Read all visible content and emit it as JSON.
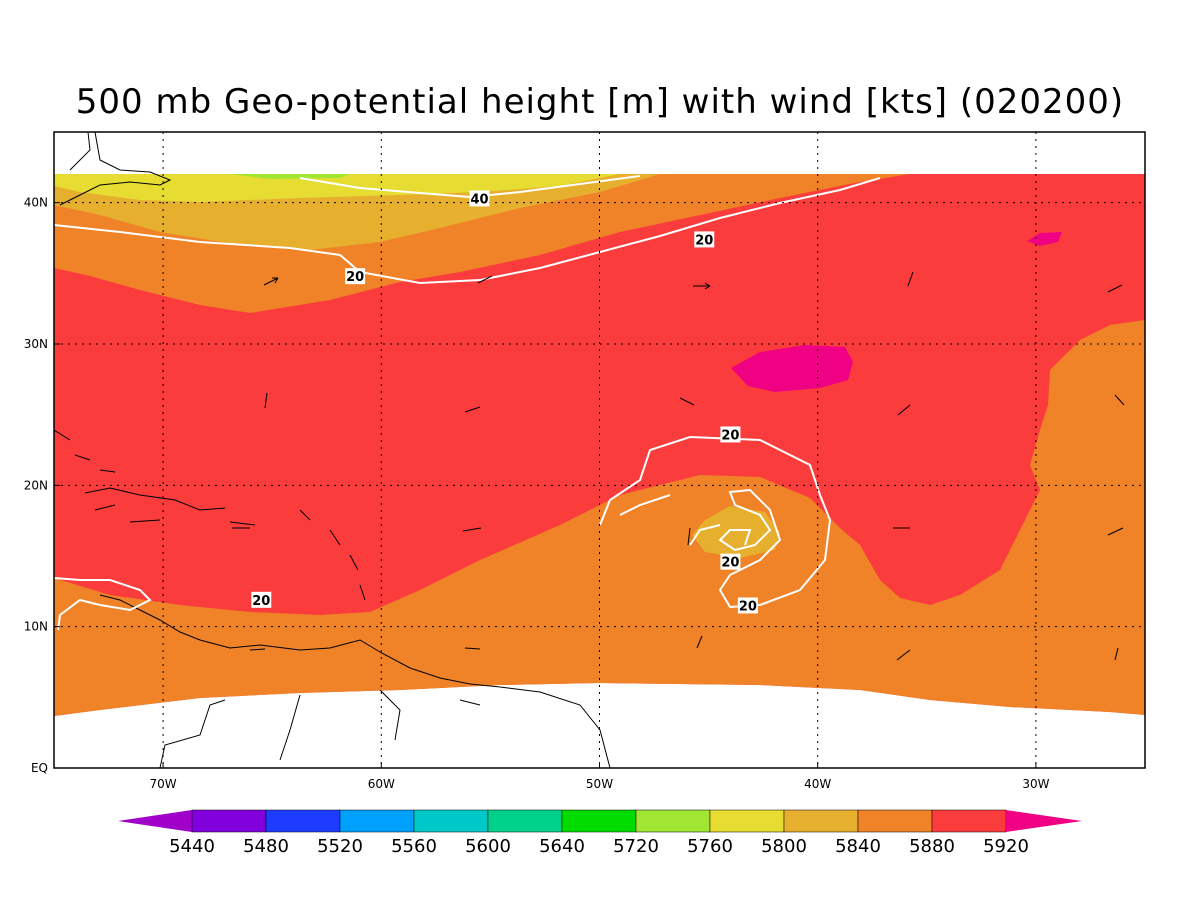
{
  "title": "500 mb Geo-potential height [m] with wind [kts] (020200)",
  "map": {
    "lon_range": [
      -75,
      -25
    ],
    "lat_range": [
      0,
      45
    ],
    "x_ticks": [
      {
        "lon": -70,
        "label": "70W"
      },
      {
        "lon": -60,
        "label": "60W"
      },
      {
        "lon": -50,
        "label": "50W"
      },
      {
        "lon": -40,
        "label": "40W"
      },
      {
        "lon": -30,
        "label": "30W"
      }
    ],
    "y_ticks": [
      {
        "lat": 0,
        "label": "EQ"
      },
      {
        "lat": 10,
        "label": "10N"
      },
      {
        "lat": 20,
        "label": "20N"
      },
      {
        "lat": 30,
        "label": "30N"
      },
      {
        "lat": 40,
        "label": "40N"
      }
    ],
    "gridlines": true,
    "wind_contour_labels": [
      {
        "value": "40",
        "lon": -55.5,
        "lat": 40.3
      },
      {
        "value": "20",
        "lon": -45.2,
        "lat": 37.4
      },
      {
        "value": "20",
        "lon": -61.2,
        "lat": 34.8
      },
      {
        "value": "20",
        "lon": -44.0,
        "lat": 23.6
      },
      {
        "value": "20",
        "lon": -44.0,
        "lat": 14.6
      },
      {
        "value": "20",
        "lon": -43.2,
        "lat": 11.5
      },
      {
        "value": "20",
        "lon": -65.5,
        "lat": 11.9
      }
    ]
  },
  "colorbar": {
    "levels": [
      "5440",
      "5480",
      "5520",
      "5560",
      "5600",
      "5640",
      "5720",
      "5760",
      "5800",
      "5840",
      "5880",
      "5920"
    ],
    "colors": [
      "#a000c8",
      "#8200dc",
      "#1e3cff",
      "#00a0ff",
      "#00c8c8",
      "#00d28c",
      "#00dc00",
      "#a0e632",
      "#e6dc32",
      "#e6af2d",
      "#f08228",
      "#fa3c3c",
      "#f00082"
    ]
  }
}
